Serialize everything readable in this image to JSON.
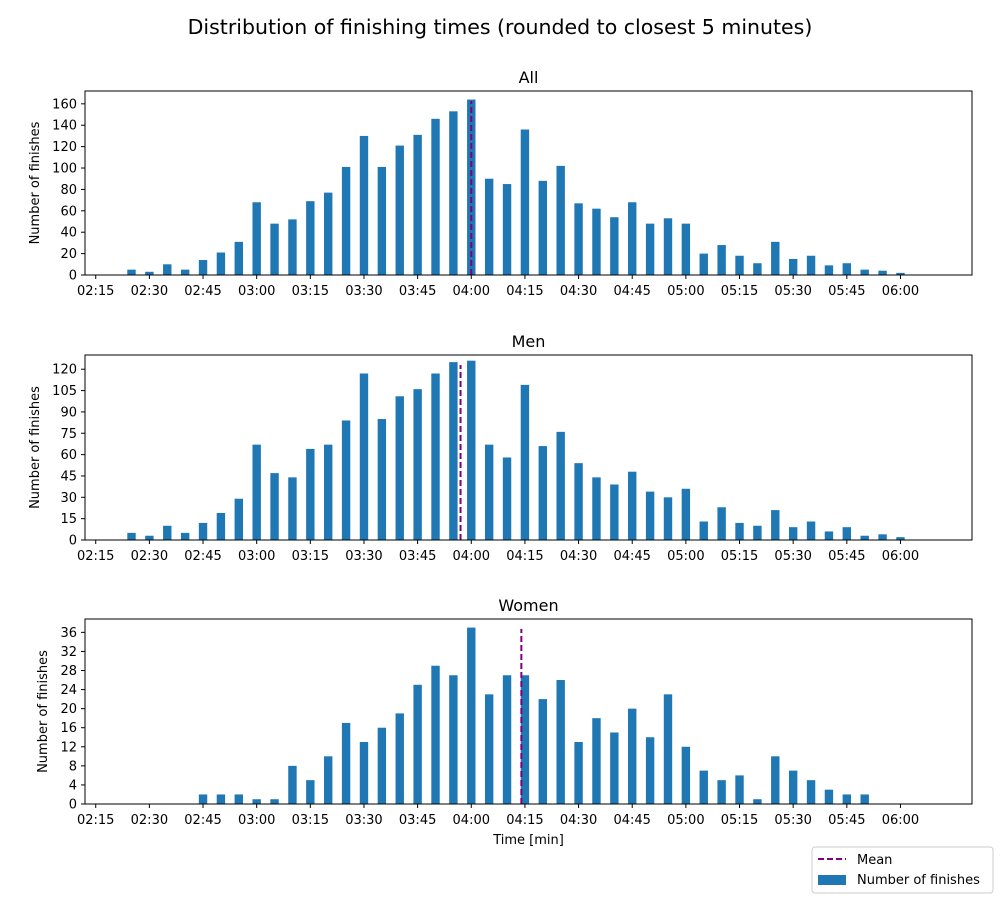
{
  "title": "Distribution of finishing times (rounded to closest 5 minutes)",
  "colors": {
    "bar": "#1f77b4",
    "mean": "#800080",
    "axis": "#000000"
  },
  "legend": {
    "placement": "bottom-right",
    "mean_label": "Mean",
    "bar_label": "Number of finishes"
  },
  "chart_data": [
    {
      "type": "bar",
      "title": "All",
      "ylabel": "Number of finishes",
      "xlabel": "",
      "ylim": [
        0,
        172
      ],
      "xlim": [
        "02:12",
        "06:20"
      ],
      "xticks": [
        "02:15",
        "02:30",
        "02:45",
        "03:00",
        "03:15",
        "03:30",
        "03:45",
        "04:00",
        "04:15",
        "04:30",
        "04:45",
        "05:00",
        "05:15",
        "05:30",
        "05:45",
        "06:00"
      ],
      "yticks": [
        0,
        20,
        40,
        60,
        80,
        100,
        120,
        140,
        160
      ],
      "mean": "04:00",
      "x": [
        "02:25",
        "02:30",
        "02:35",
        "02:40",
        "02:45",
        "02:50",
        "02:55",
        "03:00",
        "03:05",
        "03:10",
        "03:15",
        "03:20",
        "03:25",
        "03:30",
        "03:35",
        "03:40",
        "03:45",
        "03:50",
        "03:55",
        "04:00",
        "04:05",
        "04:10",
        "04:15",
        "04:20",
        "04:25",
        "04:30",
        "04:35",
        "04:40",
        "04:45",
        "04:50",
        "04:55",
        "05:00",
        "05:05",
        "05:10",
        "05:15",
        "05:20",
        "05:25",
        "05:30",
        "05:35",
        "05:40",
        "05:45",
        "05:50",
        "05:55",
        "06:00"
      ],
      "series": [
        {
          "name": "Number of finishes",
          "values": [
            5,
            3,
            10,
            5,
            14,
            21,
            31,
            68,
            48,
            52,
            69,
            77,
            101,
            130,
            101,
            121,
            131,
            146,
            153,
            164,
            90,
            85,
            136,
            88,
            102,
            67,
            62,
            54,
            68,
            48,
            53,
            48,
            20,
            28,
            18,
            11,
            31,
            15,
            18,
            9,
            11,
            5,
            4,
            2
          ]
        }
      ]
    },
    {
      "type": "bar",
      "title": "Men",
      "ylabel": "Number of finishes",
      "xlabel": "",
      "ylim": [
        0,
        130
      ],
      "xlim": [
        "02:12",
        "06:20"
      ],
      "xticks": [
        "02:15",
        "02:30",
        "02:45",
        "03:00",
        "03:15",
        "03:30",
        "03:45",
        "04:00",
        "04:15",
        "04:30",
        "04:45",
        "05:00",
        "05:15",
        "05:30",
        "05:45",
        "06:00"
      ],
      "yticks": [
        0,
        15,
        30,
        45,
        60,
        75,
        90,
        105,
        120
      ],
      "mean": "03:57",
      "x": [
        "02:25",
        "02:30",
        "02:35",
        "02:40",
        "02:45",
        "02:50",
        "02:55",
        "03:00",
        "03:05",
        "03:10",
        "03:15",
        "03:20",
        "03:25",
        "03:30",
        "03:35",
        "03:40",
        "03:45",
        "03:50",
        "03:55",
        "04:00",
        "04:05",
        "04:10",
        "04:15",
        "04:20",
        "04:25",
        "04:30",
        "04:35",
        "04:40",
        "04:45",
        "04:50",
        "04:55",
        "05:00",
        "05:05",
        "05:10",
        "05:15",
        "05:20",
        "05:25",
        "05:30",
        "05:35",
        "05:40",
        "05:45",
        "05:50",
        "05:55",
        "06:00"
      ],
      "series": [
        {
          "name": "Number of finishes",
          "values": [
            5,
            3,
            10,
            5,
            12,
            19,
            29,
            67,
            47,
            44,
            64,
            67,
            84,
            117,
            85,
            101,
            106,
            117,
            125,
            126,
            67,
            58,
            109,
            66,
            76,
            54,
            44,
            39,
            48,
            34,
            30,
            36,
            13,
            23,
            12,
            10,
            21,
            9,
            13,
            6,
            9,
            3,
            4,
            2
          ]
        }
      ]
    },
    {
      "type": "bar",
      "title": "Women",
      "ylabel": "Number of finishes",
      "xlabel": "Time [min]",
      "ylim": [
        0,
        38.8
      ],
      "xlim": [
        "02:12",
        "06:20"
      ],
      "xticks": [
        "02:15",
        "02:30",
        "02:45",
        "03:00",
        "03:15",
        "03:30",
        "03:45",
        "04:00",
        "04:15",
        "04:30",
        "04:45",
        "05:00",
        "05:15",
        "05:30",
        "05:45",
        "06:00"
      ],
      "yticks": [
        0,
        4,
        8,
        12,
        16,
        20,
        24,
        28,
        32,
        36
      ],
      "mean": "04:14",
      "x": [
        "02:45",
        "02:50",
        "02:55",
        "03:00",
        "03:05",
        "03:10",
        "03:15",
        "03:20",
        "03:25",
        "03:30",
        "03:35",
        "03:40",
        "03:45",
        "03:50",
        "03:55",
        "04:00",
        "04:05",
        "04:10",
        "04:15",
        "04:20",
        "04:25",
        "04:30",
        "04:35",
        "04:40",
        "04:45",
        "04:50",
        "04:55",
        "05:00",
        "05:05",
        "05:10",
        "05:15",
        "05:20",
        "05:25",
        "05:30",
        "05:35",
        "05:40",
        "05:45",
        "05:50"
      ],
      "series": [
        {
          "name": "Number of finishes",
          "values": [
            2,
            2,
            2,
            1,
            1,
            8,
            5,
            10,
            17,
            13,
            16,
            19,
            25,
            29,
            27,
            37,
            23,
            27,
            27,
            22,
            26,
            13,
            18,
            15,
            20,
            14,
            23,
            12,
            7,
            5,
            6,
            1,
            10,
            7,
            5,
            3,
            2,
            2
          ]
        }
      ]
    }
  ]
}
